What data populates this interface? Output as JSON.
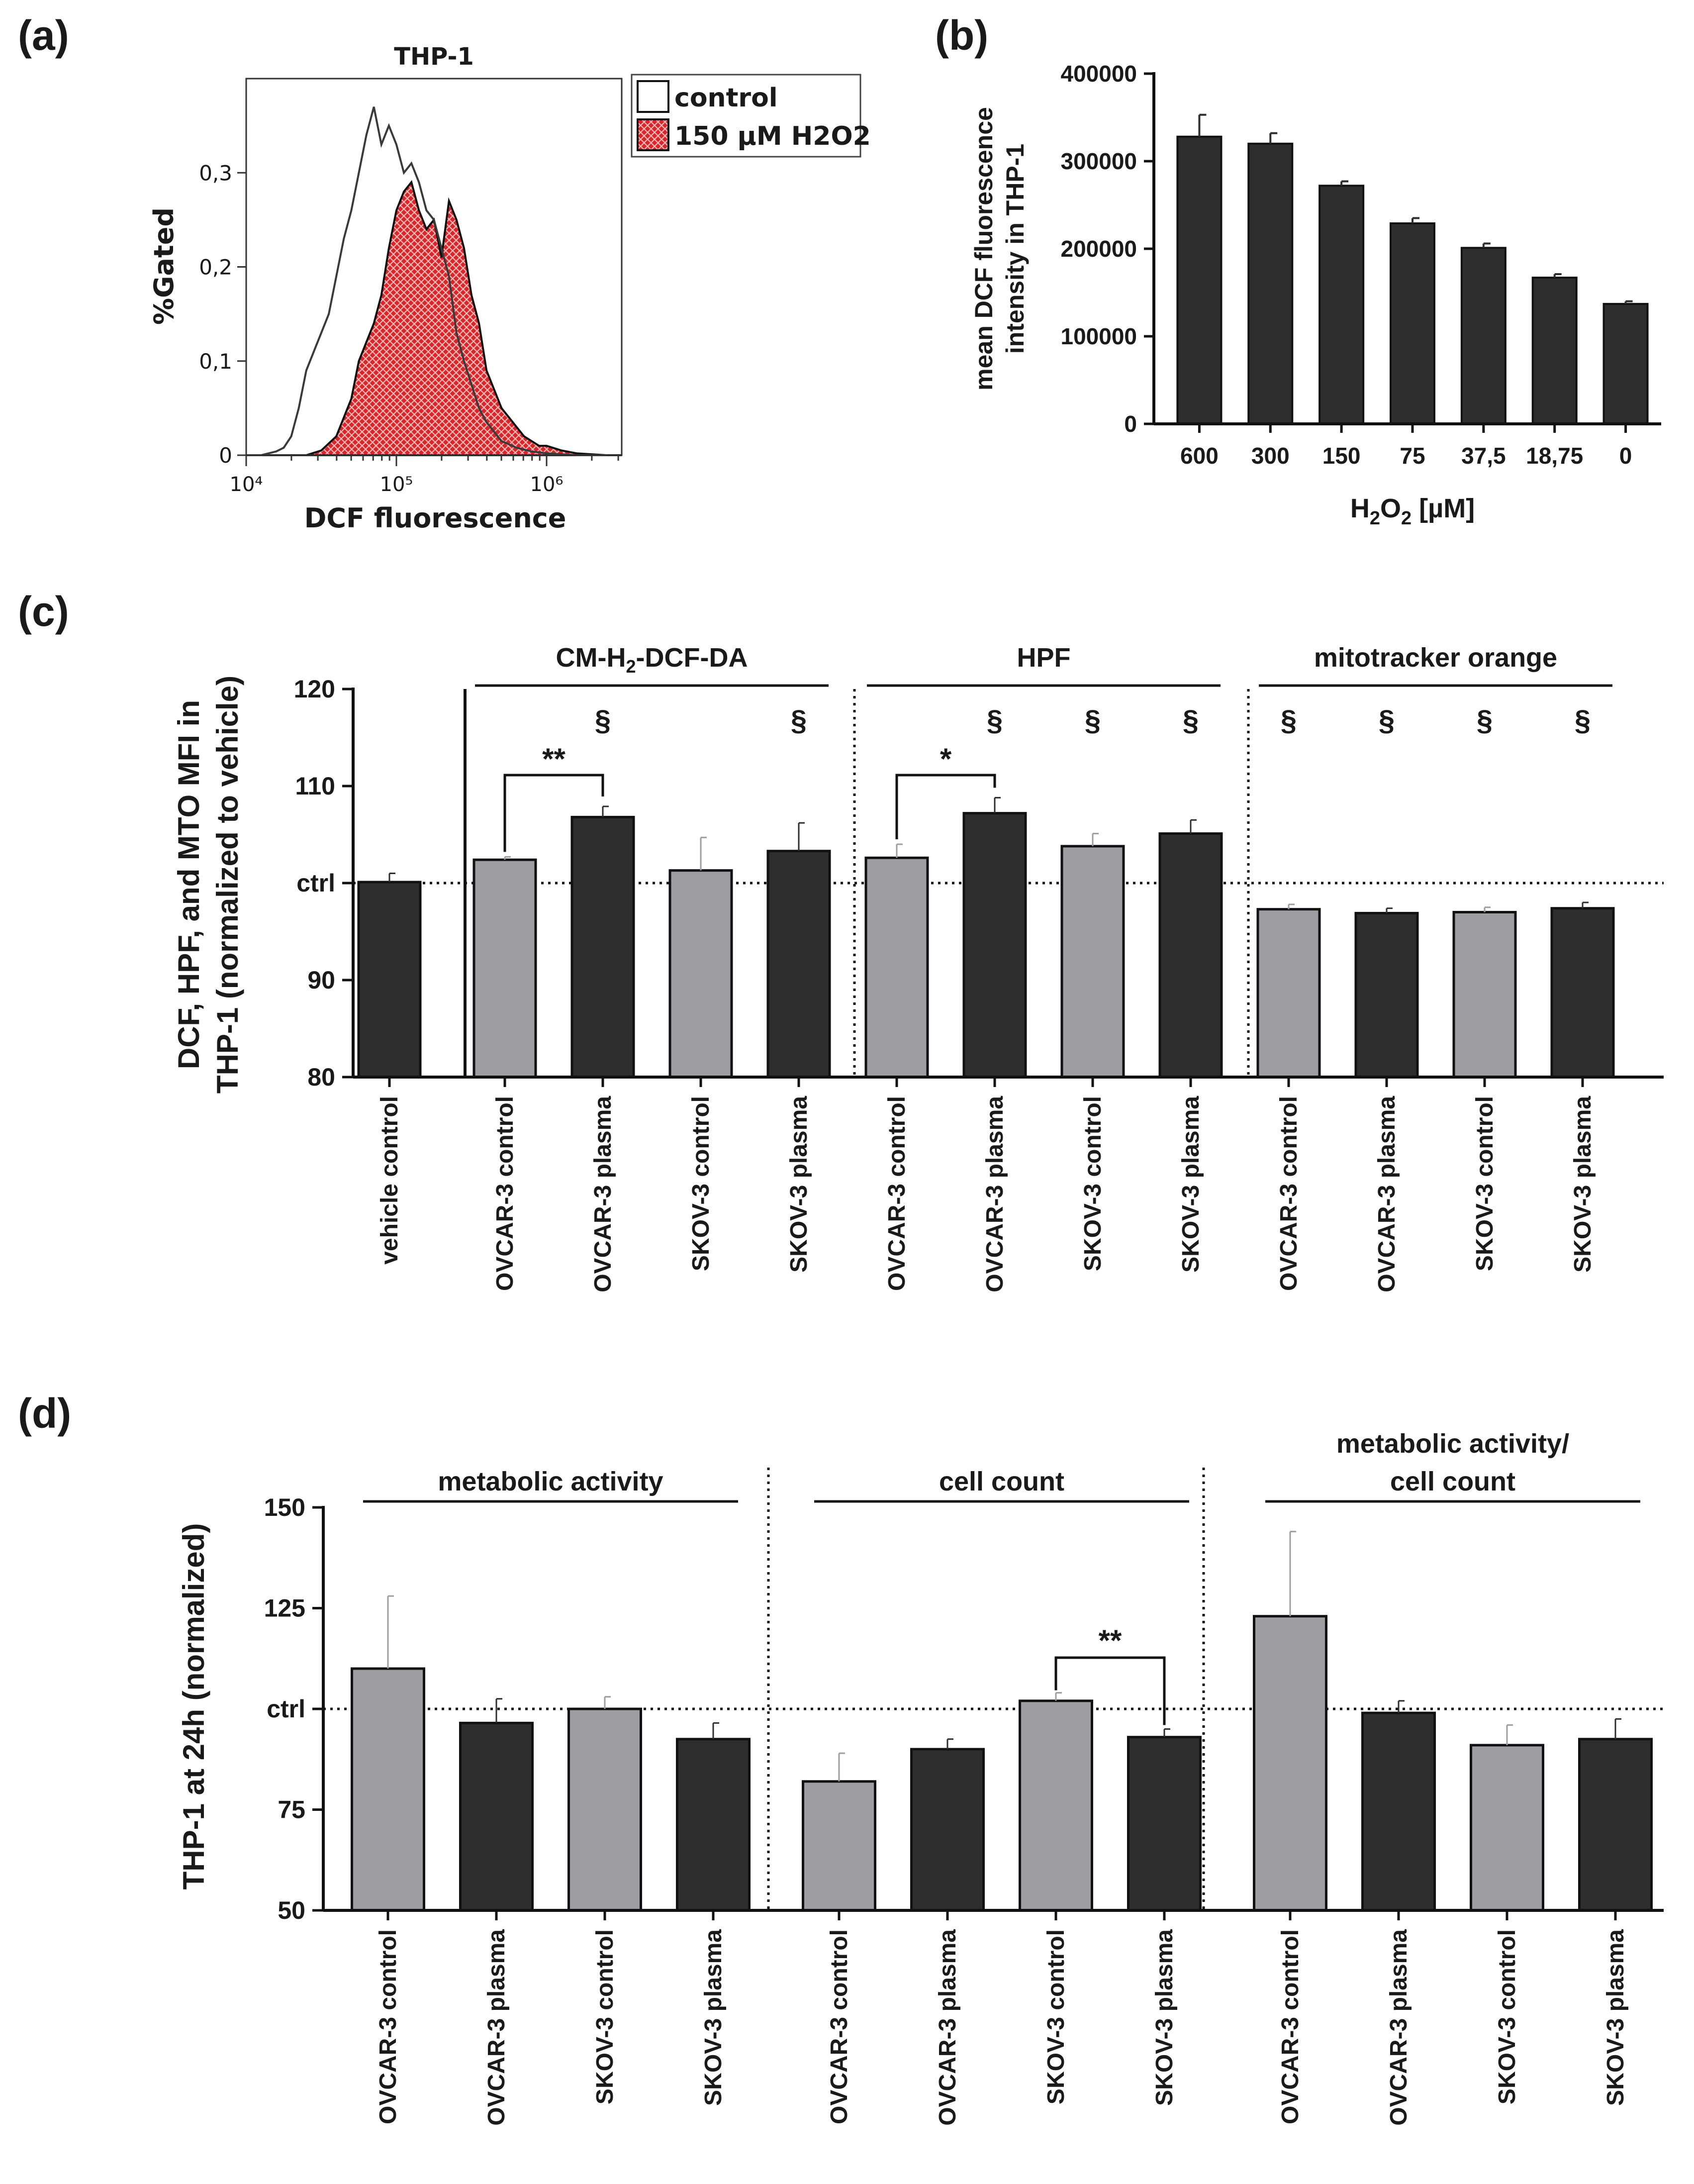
{
  "chart_data": [
    {
      "panel": "(a)",
      "type": "histogram",
      "title": "THP-1",
      "xlabel": "DCF fluorescence",
      "ylabel": "%Gated",
      "xscale": "log",
      "xlim_log10": [
        4,
        6.5
      ],
      "xticks": [
        {
          "value": 4,
          "label": "10⁴"
        },
        {
          "value": 5,
          "label": "10⁵"
        },
        {
          "value": 6,
          "label": "10⁶"
        }
      ],
      "ylim": [
        0,
        0.4
      ],
      "yticks": [
        {
          "value": 0,
          "label": "0"
        },
        {
          "value": 0.1,
          "label": "0,1"
        },
        {
          "value": 0.2,
          "label": "0,2"
        },
        {
          "value": 0.3,
          "label": "0,3"
        }
      ],
      "legend": [
        {
          "label": "control",
          "style": "outline",
          "color": "#ffffff"
        },
        {
          "label": "150 µM H2O2",
          "style": "filled-crosshatch",
          "color": "#d9262a"
        }
      ],
      "series": [
        {
          "name": "control",
          "x_log10": [
            4.0,
            4.05,
            4.1,
            4.15,
            4.2,
            4.25,
            4.3,
            4.35,
            4.4,
            4.45,
            4.5,
            4.55,
            4.6,
            4.65,
            4.7,
            4.75,
            4.8,
            4.85,
            4.9,
            4.95,
            5.0,
            5.05,
            5.1,
            5.15,
            5.2,
            5.25,
            5.3,
            5.35,
            5.4,
            5.45,
            5.5,
            5.55,
            5.6,
            5.65,
            5.7,
            5.8,
            5.9,
            6.0,
            6.1,
            6.2,
            6.3,
            6.4
          ],
          "y": [
            0,
            0,
            0,
            0.002,
            0.004,
            0.008,
            0.02,
            0.05,
            0.09,
            0.11,
            0.13,
            0.15,
            0.19,
            0.23,
            0.26,
            0.3,
            0.34,
            0.37,
            0.33,
            0.35,
            0.33,
            0.3,
            0.31,
            0.29,
            0.26,
            0.25,
            0.22,
            0.19,
            0.13,
            0.1,
            0.075,
            0.05,
            0.035,
            0.025,
            0.015,
            0.008,
            0.004,
            0.002,
            0.001,
            0,
            0,
            0
          ]
        },
        {
          "name": "150 µM H2O2",
          "x_log10": [
            4.0,
            4.2,
            4.4,
            4.5,
            4.6,
            4.65,
            4.7,
            4.75,
            4.8,
            4.85,
            4.9,
            4.95,
            5.0,
            5.05,
            5.1,
            5.15,
            5.2,
            5.25,
            5.3,
            5.35,
            5.4,
            5.45,
            5.5,
            5.55,
            5.6,
            5.65,
            5.7,
            5.75,
            5.8,
            5.85,
            5.9,
            5.95,
            6.0,
            6.1,
            6.2,
            6.3,
            6.4,
            6.5
          ],
          "y": [
            0,
            0,
            0,
            0.005,
            0.02,
            0.04,
            0.06,
            0.1,
            0.12,
            0.14,
            0.17,
            0.22,
            0.26,
            0.28,
            0.29,
            0.26,
            0.24,
            0.25,
            0.21,
            0.27,
            0.25,
            0.22,
            0.17,
            0.14,
            0.09,
            0.07,
            0.05,
            0.04,
            0.03,
            0.02,
            0.015,
            0.01,
            0.01,
            0.005,
            0.002,
            0.001,
            0,
            0
          ]
        }
      ]
    },
    {
      "panel": "(b)",
      "type": "bar",
      "title": "",
      "categories": [
        "600",
        "300",
        "150",
        "75",
        "37,5",
        "18,75",
        "0"
      ],
      "values": [
        328000,
        320000,
        272000,
        229000,
        201000,
        167000,
        137000
      ],
      "errors": [
        25000,
        12000,
        5000,
        6000,
        5000,
        4000,
        3000
      ],
      "xlabel_main": "H",
      "xlabel_sub1": "2",
      "xlabel_mid": "O",
      "xlabel_sub2": "2",
      "xlabel_tail": " [µM]",
      "ylabel_line1": "mean DCF fluorescence",
      "ylabel_line2": "intensity in THP-1",
      "ylim": [
        0,
        400000
      ],
      "yticks": [
        {
          "value": 0,
          "label": "0"
        },
        {
          "value": 100000,
          "label": "100000"
        },
        {
          "value": 200000,
          "label": "200000"
        },
        {
          "value": 300000,
          "label": "300000"
        },
        {
          "value": 400000,
          "label": "400000"
        }
      ],
      "colors": {
        "bar": "#2e2e2e"
      }
    },
    {
      "panel": "(c)",
      "type": "bar",
      "ylabel_line1": "DCF, HPF, and MTO MFI in",
      "ylabel_line2": "THP-1 (normalized to vehicle)",
      "ylim": [
        80,
        120
      ],
      "yticks": [
        {
          "value": 80,
          "label": "80"
        },
        {
          "value": 90,
          "label": "90"
        },
        {
          "value": 100,
          "label": "ctrl"
        },
        {
          "value": 110,
          "label": "110"
        },
        {
          "value": 120,
          "label": "120"
        }
      ],
      "reference_line": 100,
      "categories": [
        "vehicle control",
        "OVCAR-3 control",
        "OVCAR-3 plasma",
        "SKOV-3 control",
        "SKOV-3 plasma",
        "OVCAR-3 control",
        "OVCAR-3 plasma",
        "SKOV-3 control",
        "SKOV-3 plasma",
        "OVCAR-3 control",
        "OVCAR-3 plasma",
        "SKOV-3 control",
        "SKOV-3 plasma"
      ],
      "values": [
        100.1,
        102.4,
        106.8,
        101.3,
        103.3,
        102.6,
        107.2,
        103.8,
        105.1,
        97.3,
        96.9,
        97.0,
        97.4
      ],
      "errors": [
        0.9,
        0.3,
        1.1,
        3.4,
        2.9,
        1.4,
        1.6,
        1.3,
        1.4,
        0.5,
        0.5,
        0.5,
        0.6
      ],
      "bar_colors": [
        "dark",
        "light",
        "dark",
        "light",
        "dark",
        "light",
        "dark",
        "light",
        "dark",
        "light",
        "dark",
        "light",
        "dark"
      ],
      "groups": [
        {
          "label_main": "CM-H",
          "label_sub": "2",
          "label_tail": "-DCF-DA",
          "from": 1,
          "to": 4
        },
        {
          "label_main": "HPF",
          "label_sub": "",
          "label_tail": "",
          "from": 5,
          "to": 8
        },
        {
          "label_main": "mitotracker orange",
          "label_sub": "",
          "label_tail": "",
          "from": 9,
          "to": 12
        }
      ],
      "significance_brackets": [
        {
          "from": 1,
          "to": 2,
          "label": "**"
        },
        {
          "from": 5,
          "to": 6,
          "label": "*"
        }
      ],
      "section_marks": [
        {
          "index": 2,
          "label": "§"
        },
        {
          "index": 4,
          "label": "§"
        },
        {
          "index": 6,
          "label": "§"
        },
        {
          "index": 7,
          "label": "§"
        },
        {
          "index": 8,
          "label": "§"
        },
        {
          "index": 9,
          "label": "§"
        },
        {
          "index": 10,
          "label": "§"
        },
        {
          "index": 11,
          "label": "§"
        },
        {
          "index": 12,
          "label": "§"
        }
      ],
      "colors": {
        "light": "#9d9da2",
        "dark": "#2e2e2e"
      }
    },
    {
      "panel": "(d)",
      "type": "bar",
      "ylabel": "THP-1 at 24h (normalized)",
      "ylim": [
        50,
        150
      ],
      "yticks": [
        {
          "value": 50,
          "label": "50"
        },
        {
          "value": 75,
          "label": "75"
        },
        {
          "value": 100,
          "label": "ctrl"
        },
        {
          "value": 125,
          "label": "125"
        },
        {
          "value": 150,
          "label": "150"
        }
      ],
      "reference_line": 100,
      "categories": [
        "OVCAR-3 control",
        "OVCAR-3 plasma",
        "SKOV-3 control",
        "SKOV-3 plasma",
        "OVCAR-3 control",
        "OVCAR-3 plasma",
        "SKOV-3 control",
        "SKOV-3 plasma",
        "OVCAR-3 control",
        "OVCAR-3 plasma",
        "SKOV-3 control",
        "SKOV-3 plasma"
      ],
      "values": [
        110,
        96.5,
        100,
        92.5,
        82,
        90,
        102,
        93,
        123,
        99,
        91,
        92.5
      ],
      "errors": [
        18,
        6,
        3,
        4,
        7,
        2.5,
        2,
        2,
        21,
        3,
        5,
        5
      ],
      "bar_colors": [
        "light",
        "dark",
        "light",
        "dark",
        "light",
        "dark",
        "light",
        "dark",
        "light",
        "dark",
        "light",
        "dark"
      ],
      "groups": [
        {
          "label_line1": "metabolic activity",
          "label_line2": "",
          "from": 0,
          "to": 3
        },
        {
          "label_line1": "cell count",
          "label_line2": "",
          "from": 4,
          "to": 7
        },
        {
          "label_line1": "metabolic activity/",
          "label_line2": "cell count",
          "from": 8,
          "to": 11
        }
      ],
      "significance_brackets": [
        {
          "from": 6,
          "to": 7,
          "label": "**"
        }
      ],
      "colors": {
        "light": "#9d9da2",
        "dark": "#2e2e2e"
      }
    }
  ],
  "panel_labels": [
    "(a)",
    "(b)",
    "(c)",
    "(d)"
  ]
}
